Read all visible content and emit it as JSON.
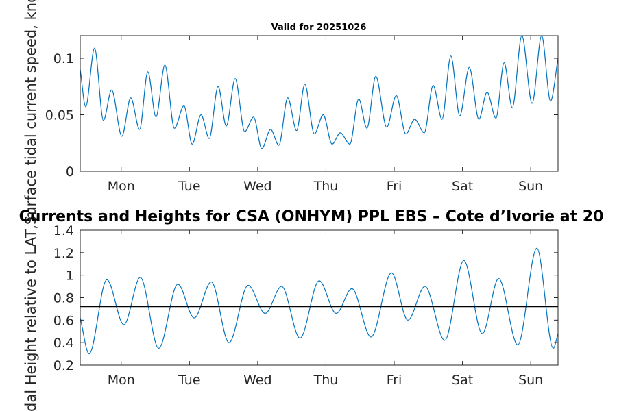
{
  "chart_data": [
    {
      "type": "line",
      "title": "Valid for 20251026",
      "xlabel": "",
      "ylabel": "Surface tidal current speed, knots",
      "x_tick_labels": [
        "Mon",
        "Tue",
        "Wed",
        "Thu",
        "Fri",
        "Sat",
        "Sun"
      ],
      "x_tick_values": [
        0.6,
        1.6,
        2.6,
        3.6,
        4.6,
        5.6,
        6.6
      ],
      "xlim": [
        0,
        7
      ],
      "ylim": [
        0,
        0.12
      ],
      "y_ticks": [
        0,
        0.05,
        0.1
      ],
      "y_tick_labels": [
        "0",
        "0.05",
        "0.1"
      ],
      "grid": false,
      "series": [
        {
          "name": "current speed",
          "color": "#0072bd",
          "x": [
            0.0,
            0.08,
            0.21,
            0.34,
            0.46,
            0.61,
            0.74,
            0.87,
            0.99,
            1.11,
            1.24,
            1.38,
            1.52,
            1.64,
            1.77,
            1.89,
            2.02,
            2.14,
            2.27,
            2.41,
            2.54,
            2.66,
            2.79,
            2.91,
            3.04,
            3.17,
            3.29,
            3.43,
            3.56,
            3.69,
            3.81,
            3.95,
            4.08,
            4.2,
            4.33,
            4.49,
            4.63,
            4.77,
            4.9,
            5.04,
            5.17,
            5.3,
            5.43,
            5.56,
            5.7,
            5.84,
            5.96,
            6.09,
            6.21,
            6.33,
            6.47,
            6.62,
            6.76,
            6.89,
            7.0
          ],
          "y": [
            0.09,
            0.057,
            0.109,
            0.045,
            0.072,
            0.031,
            0.065,
            0.037,
            0.088,
            0.048,
            0.094,
            0.038,
            0.058,
            0.024,
            0.05,
            0.029,
            0.075,
            0.04,
            0.082,
            0.035,
            0.048,
            0.02,
            0.037,
            0.023,
            0.065,
            0.036,
            0.077,
            0.033,
            0.05,
            0.024,
            0.034,
            0.024,
            0.064,
            0.038,
            0.084,
            0.039,
            0.067,
            0.033,
            0.046,
            0.034,
            0.076,
            0.046,
            0.102,
            0.049,
            0.092,
            0.046,
            0.07,
            0.047,
            0.096,
            0.056,
            0.12,
            0.06,
            0.12,
            0.062,
            0.1
          ]
        }
      ]
    },
    {
      "type": "line",
      "title": "Currents and Heights for CSA (ONHYM) PPL EBS  – Cote d’Ivorie at 20",
      "xlabel": "",
      "ylabel": "Tidal Height relative to LAT, m",
      "x_tick_labels": [
        "Mon",
        "Tue",
        "Wed",
        "Thu",
        "Fri",
        "Sat",
        "Sun"
      ],
      "x_tick_values": [
        0.6,
        1.6,
        2.6,
        3.6,
        4.6,
        5.6,
        6.6
      ],
      "xlim": [
        0,
        7
      ],
      "ylim": [
        0.2,
        1.4
      ],
      "y_ticks": [
        0.2,
        0.4,
        0.6,
        0.8,
        1.0,
        1.2,
        1.4
      ],
      "y_tick_labels": [
        "0.2",
        "0.4",
        "0.6",
        "0.8",
        "1",
        "1.2",
        "1.4"
      ],
      "reference_line": 0.72,
      "grid": false,
      "series": [
        {
          "name": "tidal height",
          "color": "#0072bd",
          "x": [
            0.0,
            0.13,
            0.39,
            0.64,
            0.88,
            1.15,
            1.43,
            1.67,
            1.92,
            2.18,
            2.46,
            2.71,
            2.95,
            3.22,
            3.5,
            3.75,
            3.98,
            4.26,
            4.56,
            4.8,
            5.05,
            5.34,
            5.62,
            5.89,
            6.13,
            6.41,
            6.69,
            6.93,
            7.0
          ],
          "y": [
            0.62,
            0.3,
            0.96,
            0.56,
            0.98,
            0.35,
            0.92,
            0.62,
            0.94,
            0.4,
            0.91,
            0.66,
            0.9,
            0.44,
            0.95,
            0.66,
            0.88,
            0.45,
            1.02,
            0.6,
            0.9,
            0.42,
            1.13,
            0.48,
            0.97,
            0.38,
            1.24,
            0.35,
            0.48
          ]
        }
      ]
    }
  ]
}
